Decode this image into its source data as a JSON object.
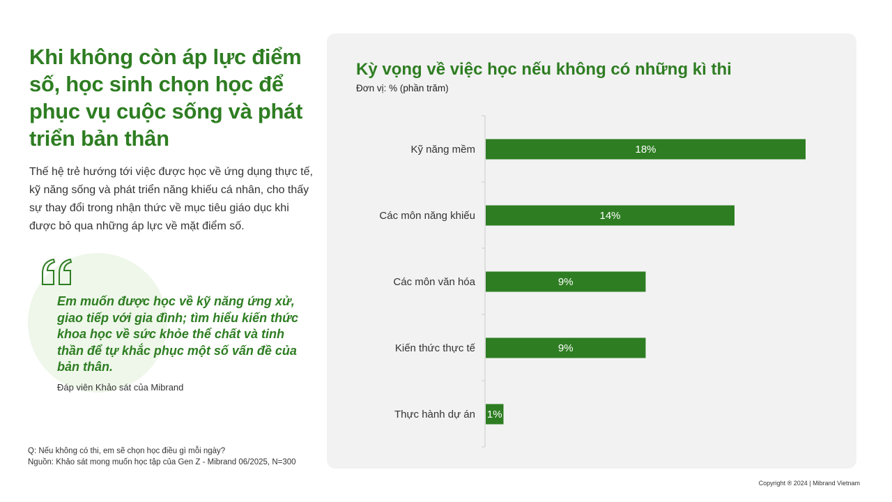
{
  "headline": "Khi không còn áp lực điểm số, học sinh chọn học để phục vụ cuộc sống và phát triển bản thân",
  "intro": "Thế hệ trẻ hướng tới việc được học về ứng dụng thực tế, kỹ năng sống và phát triển năng khiếu cá nhân, cho thấy sự thay đổi trong nhận thức về mục tiêu giáo dục khi được bỏ qua những áp lực về mặt điểm số.",
  "quote": {
    "icon": "quote-icon",
    "text": "Em muốn được học về kỹ năng ứng xử, giao tiếp với gia đình; tìm hiểu kiến thức khoa học về sức khỏe thể chất và tinh thần để tự khắc phục một số vấn đề của bản thân.",
    "author": "Đáp viên Khảo sát của Mibrand"
  },
  "footnote": {
    "question": "Q: Nếu không có thi, em sẽ chọn học điều gì mỗi ngày?",
    "source": "Nguồn: Khảo sát mong muốn học tập của Gen Z - Mibrand 06/2025, N=300"
  },
  "copyright": "Copyright ® 2024 | Mibrand Vietnam",
  "colors": {
    "accent": "#2e7d22",
    "bar": "#2e7d22",
    "panel": "#f2f2f2",
    "quote_bg": "#eef7ea"
  },
  "chart_data": {
    "type": "bar",
    "orientation": "horizontal",
    "title": "Kỳ vọng về việc học nếu không có những kì thi",
    "subtitle": "Đơn vị: % (phần trăm)",
    "categories": [
      "Kỹ năng mềm",
      "Các môn năng khiếu",
      "Các môn văn hóa",
      "Kiến thức thực tế",
      "Thực hành dự án"
    ],
    "values": [
      18,
      14,
      9,
      9,
      1
    ],
    "data_labels": [
      "18%",
      "14%",
      "9%",
      "9%",
      "1%"
    ],
    "xlim": [
      0,
      20
    ],
    "grid": false,
    "legend": "none"
  }
}
